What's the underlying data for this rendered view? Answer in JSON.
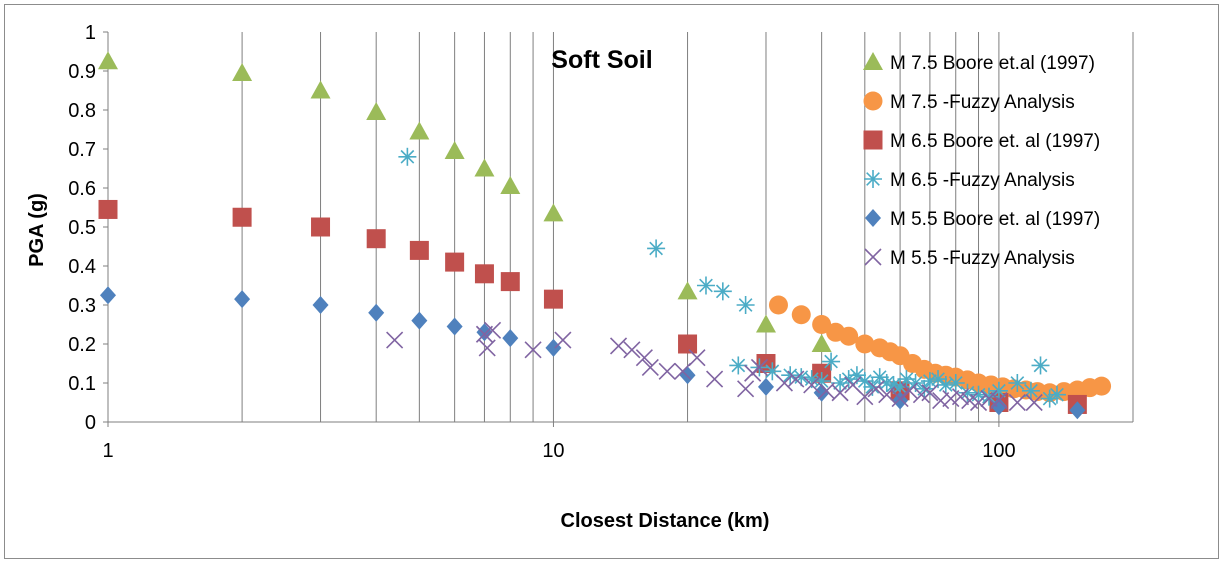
{
  "chart_data": {
    "type": "scatter",
    "title": "Soft Soil",
    "xlabel": "Closest Distance (km)",
    "ylabel": "PGA (g)",
    "x_scale": "log",
    "xlim": [
      1,
      200
    ],
    "ylim": [
      0,
      1
    ],
    "x_ticks": [
      "1",
      "10",
      "100"
    ],
    "y_ticks": [
      "0",
      "0.1",
      "0.2",
      "0.3",
      "0.4",
      "0.5",
      "0.6",
      "0.7",
      "0.8",
      "0.9",
      "1"
    ],
    "grid": "vertical",
    "legend_position": "right",
    "series": [
      {
        "name": "M 7.5 Boore et.al (1997)",
        "marker": "triangle",
        "color": "#9bbb59",
        "points": [
          [
            1,
            0.925
          ],
          [
            2,
            0.895
          ],
          [
            3,
            0.85
          ],
          [
            4,
            0.795
          ],
          [
            5,
            0.745
          ],
          [
            6,
            0.695
          ],
          [
            7,
            0.65
          ],
          [
            8,
            0.605
          ],
          [
            10,
            0.535
          ],
          [
            20,
            0.335
          ],
          [
            30,
            0.25
          ],
          [
            40,
            0.2
          ]
        ]
      },
      {
        "name": "M 7.5 -Fuzzy Analysis",
        "marker": "circle",
        "color": "#f79646",
        "points": [
          [
            32,
            0.3
          ],
          [
            36,
            0.275
          ],
          [
            40,
            0.25
          ],
          [
            43,
            0.23
          ],
          [
            46,
            0.22
          ],
          [
            50,
            0.2
          ],
          [
            54,
            0.19
          ],
          [
            57,
            0.18
          ],
          [
            60,
            0.17
          ],
          [
            64,
            0.15
          ],
          [
            68,
            0.135
          ],
          [
            72,
            0.125
          ],
          [
            76,
            0.12
          ],
          [
            80,
            0.115
          ],
          [
            85,
            0.108
          ],
          [
            90,
            0.1
          ],
          [
            96,
            0.095
          ],
          [
            102,
            0.09
          ],
          [
            108,
            0.085
          ],
          [
            115,
            0.082
          ],
          [
            122,
            0.078
          ],
          [
            130,
            0.075
          ],
          [
            140,
            0.078
          ],
          [
            150,
            0.082
          ],
          [
            160,
            0.088
          ],
          [
            170,
            0.092
          ]
        ]
      },
      {
        "name": "M 6.5 Boore et. al (1997)",
        "marker": "square",
        "color": "#c0504d",
        "points": [
          [
            1,
            0.545
          ],
          [
            2,
            0.525
          ],
          [
            3,
            0.5
          ],
          [
            4,
            0.47
          ],
          [
            5,
            0.44
          ],
          [
            6,
            0.41
          ],
          [
            7,
            0.38
          ],
          [
            8,
            0.36
          ],
          [
            10,
            0.315
          ],
          [
            20,
            0.2
          ],
          [
            30,
            0.15
          ],
          [
            40,
            0.125
          ],
          [
            60,
            0.08
          ],
          [
            100,
            0.05
          ],
          [
            150,
            0.045
          ]
        ]
      },
      {
        "name": "M 6.5 -Fuzzy Analysis",
        "marker": "asterisk",
        "color": "#4bacc6",
        "points": [
          [
            4.7,
            0.68
          ],
          [
            17,
            0.445
          ],
          [
            22,
            0.35
          ],
          [
            24,
            0.335
          ],
          [
            27,
            0.3
          ],
          [
            26,
            0.145
          ],
          [
            29,
            0.14
          ],
          [
            31,
            0.13
          ],
          [
            34,
            0.12
          ],
          [
            36,
            0.115
          ],
          [
            38,
            0.11
          ],
          [
            40,
            0.105
          ],
          [
            42,
            0.155
          ],
          [
            44,
            0.1
          ],
          [
            46,
            0.11
          ],
          [
            48,
            0.12
          ],
          [
            50,
            0.105
          ],
          [
            52,
            0.09
          ],
          [
            54,
            0.115
          ],
          [
            56,
            0.1
          ],
          [
            58,
            0.095
          ],
          [
            60,
            0.09
          ],
          [
            62,
            0.11
          ],
          [
            65,
            0.1
          ],
          [
            68,
            0.085
          ],
          [
            70,
            0.105
          ],
          [
            73,
            0.11
          ],
          [
            76,
            0.095
          ],
          [
            80,
            0.1
          ],
          [
            85,
            0.075
          ],
          [
            90,
            0.07
          ],
          [
            95,
            0.065
          ],
          [
            100,
            0.08
          ],
          [
            110,
            0.1
          ],
          [
            118,
            0.08
          ],
          [
            124,
            0.145
          ],
          [
            130,
            0.06
          ],
          [
            135,
            0.07
          ]
        ]
      },
      {
        "name": "M 5.5 Boore et. al (1997)",
        "marker": "diamond",
        "color": "#4f81bd",
        "points": [
          [
            1,
            0.325
          ],
          [
            2,
            0.315
          ],
          [
            3,
            0.3
          ],
          [
            4,
            0.28
          ],
          [
            5,
            0.26
          ],
          [
            6,
            0.245
          ],
          [
            7,
            0.23
          ],
          [
            8,
            0.215
          ],
          [
            10,
            0.19
          ],
          [
            20,
            0.12
          ],
          [
            30,
            0.09
          ],
          [
            40,
            0.075
          ],
          [
            60,
            0.055
          ],
          [
            100,
            0.04
          ],
          [
            150,
            0.03
          ]
        ]
      },
      {
        "name": "M 5.5 -Fuzzy Analysis",
        "marker": "x",
        "color": "#8064a2",
        "points": [
          [
            4.4,
            0.21
          ],
          [
            7,
            0.225
          ],
          [
            7.3,
            0.235
          ],
          [
            7.1,
            0.19
          ],
          [
            9,
            0.185
          ],
          [
            10.5,
            0.21
          ],
          [
            14,
            0.195
          ],
          [
            15,
            0.185
          ],
          [
            16,
            0.165
          ],
          [
            16.5,
            0.14
          ],
          [
            18,
            0.13
          ],
          [
            19.5,
            0.13
          ],
          [
            21,
            0.165
          ],
          [
            23,
            0.11
          ],
          [
            27,
            0.085
          ],
          [
            28,
            0.125
          ],
          [
            29,
            0.14
          ],
          [
            33,
            0.1
          ],
          [
            35,
            0.11
          ],
          [
            38,
            0.095
          ],
          [
            41,
            0.08
          ],
          [
            44,
            0.075
          ],
          [
            47,
            0.095
          ],
          [
            50,
            0.065
          ],
          [
            53,
            0.085
          ],
          [
            56,
            0.07
          ],
          [
            60,
            0.06
          ],
          [
            63,
            0.08
          ],
          [
            67,
            0.07
          ],
          [
            70,
            0.075
          ],
          [
            74,
            0.055
          ],
          [
            78,
            0.06
          ],
          [
            82,
            0.065
          ],
          [
            86,
            0.055
          ],
          [
            90,
            0.05
          ],
          [
            95,
            0.06
          ],
          [
            100,
            0.055
          ],
          [
            110,
            0.05
          ],
          [
            120,
            0.05
          ]
        ]
      }
    ]
  }
}
